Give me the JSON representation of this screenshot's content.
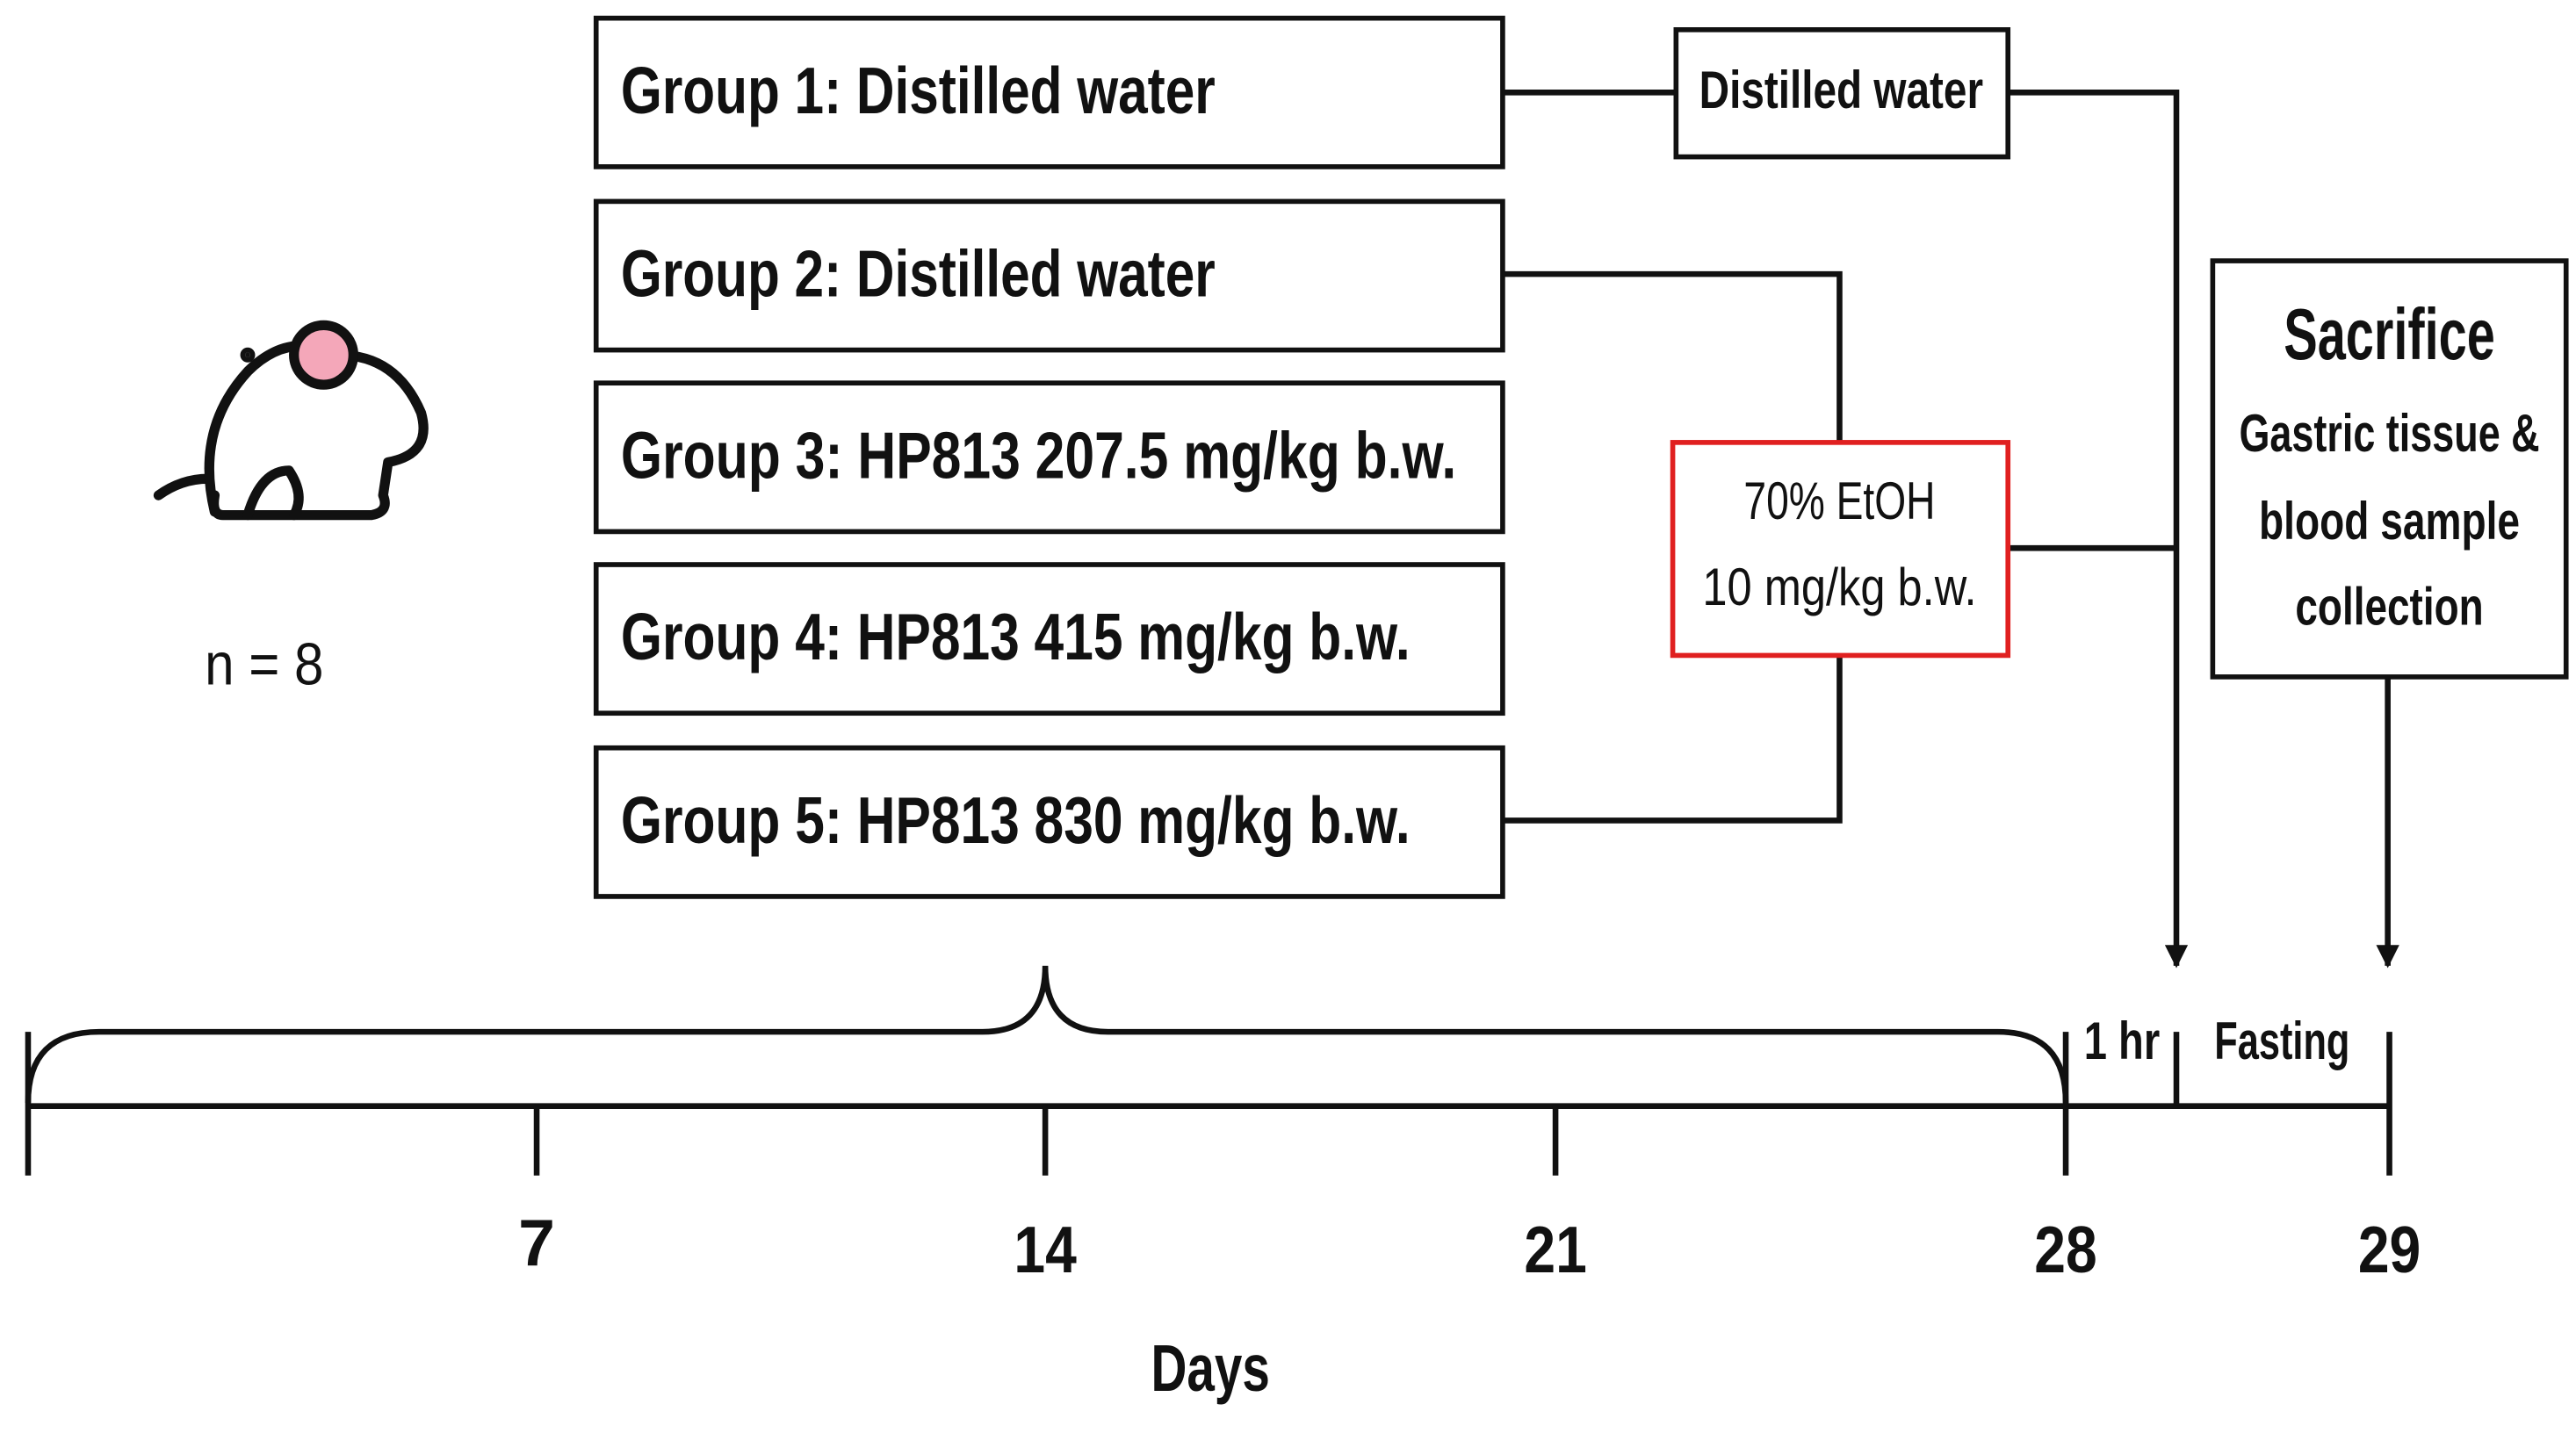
{
  "subject": {
    "sample_size": "n = 8"
  },
  "groups": [
    "Group 1: Distilled water",
    "Group 2: Distilled water",
    "Group 3: HP813 207.5 mg/kg b.w.",
    "Group 4: HP813 415 mg/kg b.w.",
    "Group 5: HP813 830 mg/kg b.w."
  ],
  "treatments": {
    "control": "Distilled water",
    "ethanol": [
      "70% EtOH",
      "10 mg/kg b.w."
    ]
  },
  "sacrifice": {
    "title": "Sacrifice",
    "lines": [
      "Gastric tissue &",
      "blood sample",
      "collection"
    ]
  },
  "timeline": {
    "ticks": [
      "7",
      "14",
      "21",
      "28",
      "29"
    ],
    "intervals": [
      "1 hr",
      "Fasting"
    ],
    "axis_label": "Days"
  }
}
